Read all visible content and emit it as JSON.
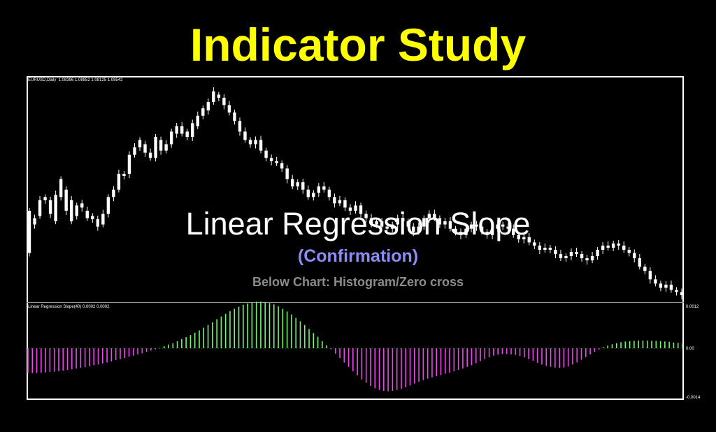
{
  "page": {
    "title": "Indicator Study",
    "overlay_main": "Linear Regression Slope",
    "overlay_sub": "(Confirmation)",
    "overlay_note": "Below Chart: Histogram/Zero cross"
  },
  "chart_data": [
    {
      "type": "candlestick",
      "header": "EURUSD,Daily  1.08396 1.08852 1.08125 1.08542",
      "candles": [
        [
          125,
          165
        ],
        [
          158,
          152
        ],
        [
          160,
          175
        ],
        [
          175,
          178
        ],
        [
          175,
          162
        ],
        [
          155,
          180
        ],
        [
          178,
          195
        ],
        [
          185,
          165
        ],
        [
          175,
          155
        ],
        [
          170,
          160
        ],
        [
          172,
          168
        ],
        [
          165,
          158
        ],
        [
          160,
          157
        ],
        [
          157,
          150
        ],
        [
          152,
          162
        ],
        [
          162,
          178
        ],
        [
          178,
          185
        ],
        [
          185,
          200
        ],
        [
          200,
          198
        ],
        [
          200,
          218
        ],
        [
          218,
          225
        ],
        [
          225,
          232
        ],
        [
          228,
          220
        ],
        [
          220,
          215
        ],
        [
          215,
          235
        ],
        [
          232,
          222
        ],
        [
          222,
          228
        ],
        [
          228,
          240
        ],
        [
          238,
          245
        ],
        [
          245,
          238
        ],
        [
          240,
          235
        ],
        [
          235,
          248
        ],
        [
          245,
          255
        ],
        [
          255,
          262
        ],
        [
          260,
          268
        ],
        [
          268,
          278
        ],
        [
          275,
          272
        ],
        [
          272,
          265
        ],
        [
          265,
          258
        ],
        [
          258,
          250
        ],
        [
          250,
          240
        ],
        [
          240,
          232
        ],
        [
          232,
          228
        ],
        [
          228,
          232
        ],
        [
          232,
          222
        ],
        [
          222,
          215
        ],
        [
          215,
          212
        ],
        [
          212,
          210
        ],
        [
          210,
          205
        ],
        [
          205,
          195
        ],
        [
          195,
          188
        ],
        [
          188,
          192
        ],
        [
          192,
          185
        ],
        [
          185,
          178
        ],
        [
          178,
          182
        ],
        [
          182,
          188
        ],
        [
          188,
          185
        ],
        [
          185,
          178
        ],
        [
          178,
          172
        ],
        [
          172,
          175
        ],
        [
          175,
          168
        ],
        [
          168,
          165
        ],
        [
          165,
          170
        ],
        [
          170,
          162
        ],
        [
          162,
          158
        ],
        [
          158,
          152
        ],
        [
          152,
          155
        ],
        [
          155,
          150
        ],
        [
          150,
          148
        ],
        [
          148,
          152
        ],
        [
          152,
          158
        ],
        [
          158,
          155
        ],
        [
          155,
          150
        ],
        [
          150,
          145
        ],
        [
          145,
          150
        ],
        [
          150,
          158
        ],
        [
          158,
          162
        ],
        [
          162,
          158
        ],
        [
          158,
          152
        ],
        [
          152,
          155
        ],
        [
          155,
          148
        ],
        [
          148,
          145
        ],
        [
          145,
          142
        ],
        [
          142,
          148
        ],
        [
          148,
          152
        ],
        [
          152,
          150
        ],
        [
          150,
          145
        ],
        [
          145,
          142
        ],
        [
          142,
          148
        ],
        [
          148,
          152
        ],
        [
          152,
          150
        ],
        [
          150,
          148
        ],
        [
          148,
          142
        ],
        [
          142,
          138
        ],
        [
          138,
          140
        ],
        [
          140,
          135
        ],
        [
          135,
          132
        ],
        [
          132,
          128
        ],
        [
          128,
          130
        ],
        [
          130,
          128
        ],
        [
          128,
          124
        ],
        [
          124,
          120
        ],
        [
          120,
          122
        ],
        [
          122,
          126
        ],
        [
          126,
          124
        ],
        [
          124,
          120
        ],
        [
          120,
          118
        ],
        [
          118,
          122
        ],
        [
          122,
          128
        ],
        [
          128,
          132
        ],
        [
          132,
          130
        ],
        [
          130,
          134
        ],
        [
          134,
          132
        ],
        [
          132,
          128
        ],
        [
          128,
          125
        ],
        [
          125,
          120
        ],
        [
          120,
          112
        ],
        [
          112,
          108
        ],
        [
          108,
          100
        ],
        [
          100,
          96
        ],
        [
          96,
          92
        ],
        [
          92,
          95
        ],
        [
          95,
          90
        ],
        [
          90,
          88
        ],
        [
          88,
          85
        ]
      ]
    },
    {
      "type": "bar",
      "header": "Linear Regression Slope(40) 0.0002 0.0002",
      "ylabels": [
        "0.0012",
        "0.00",
        "-0.0014"
      ],
      "colors": {
        "positive": "#72f572",
        "negative": "#ee44ee",
        "zero_tick": "#6cd66c"
      },
      "values": []
    }
  ]
}
